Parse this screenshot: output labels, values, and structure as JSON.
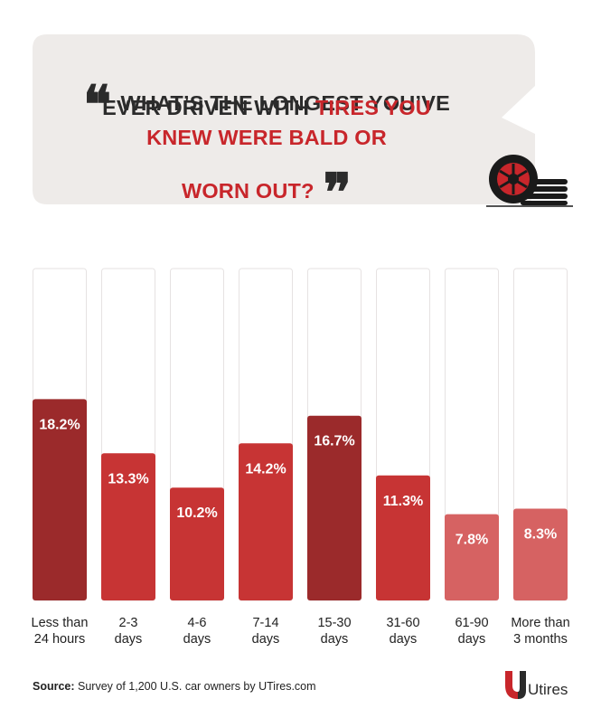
{
  "header": {
    "line1": "WHAT’S THE LONGEST YOU’VE",
    "line2_dark": "EVER DRIVEN WITH ",
    "line2_red": "TIRES YOU",
    "line3_red": "KNEW WERE BALD OR",
    "line4_red": "WORN OUT?",
    "open_quote": "❝",
    "close_quote": "❞"
  },
  "icons": {
    "tire": "tire-icon",
    "brand": "utires-logo-icon"
  },
  "colors": {
    "dark_red": "#9b2a2b",
    "red": "#c73434",
    "light_red": "#d66262",
    "accent": "#c8262b",
    "bubble": "#eeebe9"
  },
  "chart_data": {
    "type": "bar",
    "categories": [
      "Less than\n24 hours",
      "2-3\ndays",
      "4-6\ndays",
      "7-14\ndays",
      "15-30\ndays",
      "31-60\ndays",
      "61-90\ndays",
      "More than\n3 months"
    ],
    "values": [
      18.2,
      13.3,
      10.2,
      14.2,
      16.7,
      11.3,
      7.8,
      8.3
    ],
    "labels": [
      "18.2%",
      "13.3%",
      "10.2%",
      "14.2%",
      "16.7%",
      "11.3%",
      "7.8%",
      "8.3%"
    ],
    "shades": [
      "dark",
      "mid",
      "mid",
      "mid",
      "dark",
      "mid",
      "light",
      "light"
    ],
    "ylim": [
      0,
      30
    ],
    "grid": false,
    "legend": "none"
  },
  "source": {
    "label": "Source:",
    "text": " Survey of 1,200 U.S. car owners by UTires.com"
  },
  "brand": {
    "name": "Utires"
  }
}
